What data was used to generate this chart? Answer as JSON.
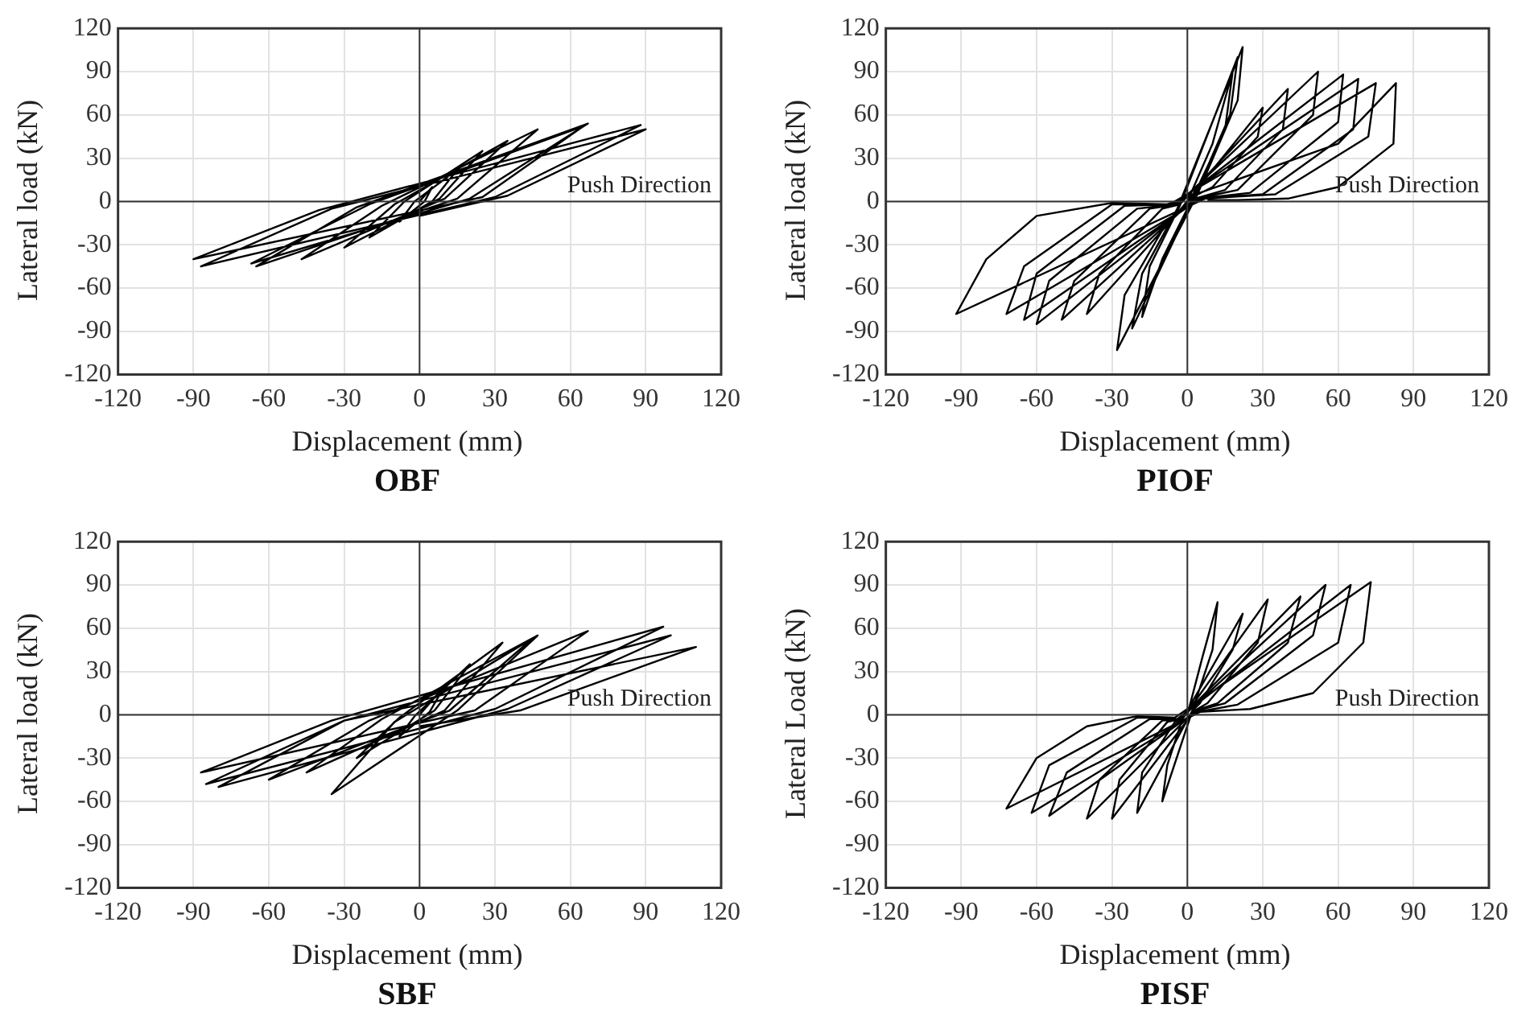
{
  "chart_data": [
    {
      "type": "line",
      "title": "OBF",
      "xlabel": "Displacement (mm)",
      "ylabel": "Lateral load (kN)",
      "color": "#000000",
      "marker": "none",
      "grid": true,
      "annotations": [
        "Push Direction"
      ],
      "xlim": [
        -120,
        120
      ],
      "ylim": [
        -120,
        120
      ],
      "xticks": [
        -120,
        -90,
        -60,
        -30,
        0,
        30,
        60,
        90,
        120
      ],
      "yticks": [
        -120,
        -90,
        -60,
        -30,
        0,
        30,
        60,
        90,
        120
      ],
      "x": [
        0,
        5,
        2,
        -8,
        -2,
        15,
        5,
        -20,
        -6,
        25,
        8,
        -30,
        -10,
        35,
        10,
        -47,
        -15,
        47,
        15,
        -65,
        -25,
        67,
        20,
        -67,
        -20,
        65,
        25,
        -90,
        -40,
        88,
        30,
        -87,
        -35,
        90,
        35,
        0
      ],
      "values": [
        0,
        10,
        0,
        -14,
        0,
        22,
        0,
        -25,
        0,
        35,
        2,
        -32,
        -2,
        42,
        2,
        -40,
        -3,
        50,
        2,
        -45,
        -4,
        54,
        2,
        -43,
        -2,
        52,
        3,
        -40,
        -6,
        53,
        3,
        -45,
        -5,
        50,
        4,
        -10
      ]
    },
    {
      "type": "line",
      "title": "PIOF",
      "xlabel": "Displacement (mm)",
      "ylabel": "Lateral load (kN)",
      "color": "#000000",
      "marker": "none",
      "grid": true,
      "annotations": [
        "Push Direction"
      ],
      "xlim": [
        -120,
        120
      ],
      "ylim": [
        -120,
        120
      ],
      "xticks": [
        -120,
        -90,
        -60,
        -30,
        0,
        30,
        60,
        90,
        120
      ],
      "yticks": [
        -120,
        -90,
        -60,
        -30,
        0,
        30,
        60,
        90,
        120
      ],
      "x": [
        0,
        10,
        18,
        15,
        2,
        -10,
        -18,
        -15,
        -3,
        20,
        17,
        3,
        -22,
        -18,
        -4,
        22,
        20,
        4,
        -28,
        -25,
        -10,
        -2,
        30,
        28,
        10,
        2,
        -40,
        -35,
        -10,
        -3,
        40,
        38,
        15,
        3,
        -50,
        -45,
        -15,
        -4,
        52,
        50,
        20,
        4,
        -60,
        -55,
        -20,
        -5,
        62,
        60,
        25,
        5,
        -65,
        -60,
        -25,
        -6,
        68,
        66,
        30,
        6,
        -72,
        -65,
        -30,
        -7,
        75,
        72,
        35,
        7,
        -92,
        -80,
        -60,
        -30,
        -8,
        60,
        83,
        82,
        60,
        40,
        20,
        8
      ],
      "values": [
        0,
        40,
        90,
        50,
        2,
        -40,
        -80,
        -45,
        -3,
        100,
        60,
        4,
        -88,
        -50,
        -5,
        107,
        70,
        5,
        -103,
        -65,
        -20,
        -4,
        65,
        45,
        10,
        3,
        -78,
        -50,
        -5,
        -2,
        78,
        50,
        8,
        2,
        -82,
        -55,
        -5,
        -2,
        90,
        60,
        8,
        2,
        -85,
        -55,
        -5,
        -2,
        88,
        55,
        6,
        2,
        -82,
        -50,
        -3,
        -2,
        85,
        50,
        5,
        2,
        -78,
        -45,
        -2,
        -2,
        82,
        45,
        5,
        2,
        -78,
        -40,
        -10,
        -1,
        -2,
        40,
        82,
        40,
        10,
        2,
        1,
        1
      ]
    },
    {
      "type": "line",
      "title": "SBF",
      "xlabel": "Displacement (mm)",
      "ylabel": "Lateral load (kN)",
      "color": "#000000",
      "marker": "none",
      "grid": true,
      "annotations": [
        "Push Direction"
      ],
      "xlim": [
        -120,
        120
      ],
      "ylim": [
        -120,
        120
      ],
      "xticks": [
        -120,
        -90,
        -60,
        -30,
        0,
        30,
        60,
        90,
        120
      ],
      "yticks": [
        -120,
        -90,
        -60,
        -30,
        0,
        30,
        60,
        90,
        120
      ],
      "x": [
        0,
        10,
        4,
        -8,
        -2,
        20,
        6,
        -25,
        -8,
        33,
        10,
        -45,
        -15,
        47,
        15,
        -35,
        -10,
        45,
        12,
        -60,
        -20,
        67,
        22,
        -87,
        -35,
        97,
        30,
        -85,
        -30,
        100,
        35,
        -80,
        -30,
        110,
        40,
        0
      ],
      "values": [
        0,
        20,
        2,
        -15,
        -1,
        35,
        3,
        -30,
        -2,
        50,
        3,
        -40,
        -3,
        55,
        3,
        -55,
        -5,
        53,
        3,
        -45,
        -4,
        58,
        3,
        -40,
        -4,
        61,
        4,
        -48,
        -4,
        55,
        4,
        -50,
        -4,
        47,
        3,
        -8
      ]
    },
    {
      "type": "line",
      "title": "PISF",
      "xlabel": "Displacement (mm)",
      "ylabel": "Lateral Load (kN)",
      "color": "#000000",
      "marker": "none",
      "grid": true,
      "annotations": [
        "Push Direction"
      ],
      "xlim": [
        -120,
        120
      ],
      "ylim": [
        -120,
        120
      ],
      "xticks": [
        -120,
        -90,
        -60,
        -30,
        0,
        30,
        60,
        90,
        120
      ],
      "yticks": [
        -120,
        -90,
        -60,
        -30,
        0,
        30,
        60,
        90,
        120
      ],
      "x": [
        0,
        6,
        12,
        10,
        2,
        -10,
        -8,
        -2,
        22,
        18,
        5,
        2,
        -20,
        -18,
        -5,
        -2,
        32,
        28,
        8,
        3,
        -30,
        -27,
        -8,
        -3,
        45,
        40,
        12,
        3,
        -40,
        -35,
        -10,
        -3,
        55,
        50,
        15,
        4,
        -55,
        -48,
        -15,
        -4,
        65,
        60,
        20,
        4,
        -62,
        -55,
        -20,
        -5,
        73,
        70,
        50,
        25,
        5,
        -72,
        -60,
        -40,
        -20,
        -5
      ],
      "values": [
        0,
        40,
        78,
        45,
        3,
        -60,
        -35,
        -3,
        70,
        45,
        8,
        3,
        -68,
        -40,
        -5,
        -3,
        80,
        50,
        8,
        3,
        -72,
        -45,
        -5,
        -3,
        82,
        50,
        8,
        3,
        -72,
        -45,
        -4,
        -3,
        90,
        55,
        8,
        3,
        -70,
        -40,
        -3,
        -3,
        90,
        50,
        7,
        2,
        -68,
        -35,
        -2,
        -2,
        92,
        50,
        15,
        4,
        2,
        -65,
        -30,
        -8,
        -1,
        -2
      ]
    }
  ]
}
